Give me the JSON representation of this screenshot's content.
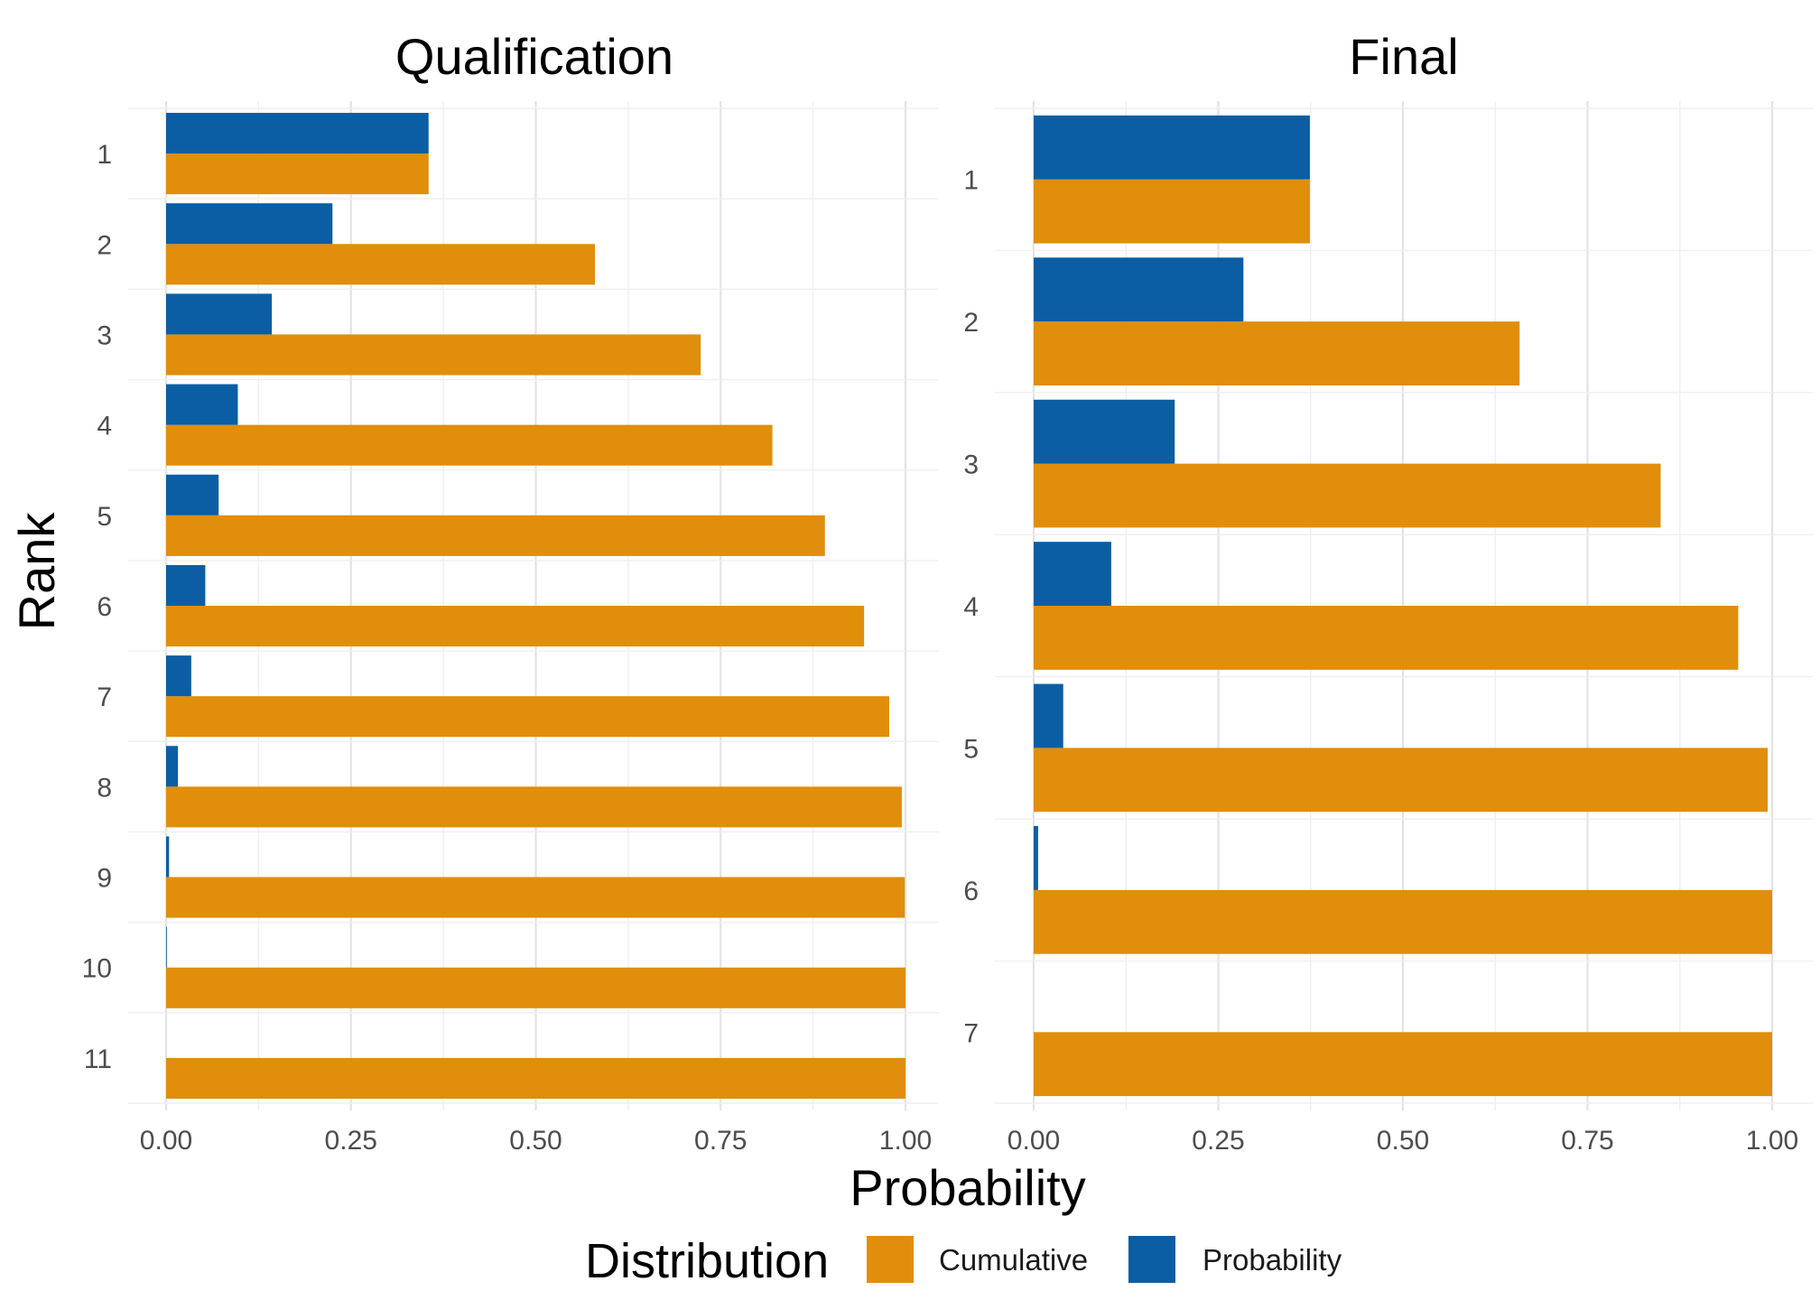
{
  "chart_data": [
    {
      "type": "bar",
      "orientation": "horizontal",
      "title": "Qualification",
      "categories": [
        "1",
        "2",
        "3",
        "4",
        "5",
        "6",
        "7",
        "8",
        "9",
        "10",
        "11"
      ],
      "series": [
        {
          "name": "Cumulative",
          "values": [
            0.355,
            0.58,
            0.723,
            0.82,
            0.891,
            0.944,
            0.978,
            0.995,
            0.999,
            1.0,
            1.0
          ]
        },
        {
          "name": "Probability",
          "values": [
            0.355,
            0.225,
            0.143,
            0.097,
            0.071,
            0.053,
            0.034,
            0.016,
            0.004,
            0.001,
            0.0
          ]
        }
      ],
      "xlim": [
        0,
        1.0
      ],
      "xticks": [
        "0.00",
        "0.25",
        "0.50",
        "0.75",
        "1.00"
      ]
    },
    {
      "type": "bar",
      "orientation": "horizontal",
      "title": "Final",
      "categories": [
        "1",
        "2",
        "3",
        "4",
        "5",
        "6",
        "7"
      ],
      "series": [
        {
          "name": "Cumulative",
          "values": [
            0.374,
            0.658,
            0.849,
            0.954,
            0.994,
            1.0,
            1.0
          ]
        },
        {
          "name": "Probability",
          "values": [
            0.374,
            0.284,
            0.191,
            0.105,
            0.04,
            0.006,
            0.0
          ]
        }
      ],
      "xlim": [
        0,
        1.0
      ],
      "xticks": [
        "0.00",
        "0.25",
        "0.50",
        "0.75",
        "1.00"
      ]
    }
  ],
  "axes": {
    "xlabel": "Probability",
    "ylabel": "Rank"
  },
  "legend": {
    "title": "Distribution",
    "position": "bottom",
    "items": [
      {
        "label": "Cumulative",
        "color": "#E08E0B"
      },
      {
        "label": "Probability",
        "color": "#0B5EA3"
      }
    ]
  },
  "colors": {
    "cumulative": "#E08E0B",
    "probability": "#0B5EA3"
  }
}
